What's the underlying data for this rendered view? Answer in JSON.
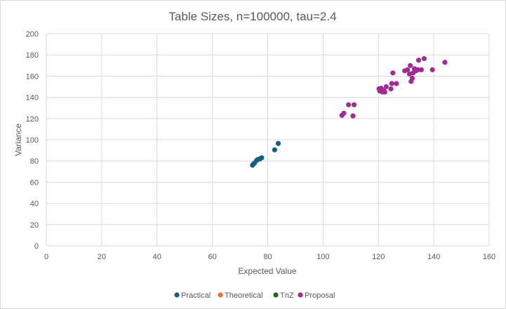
{
  "chart_data": {
    "type": "scatter",
    "title": "Table Sizes, n=100000, tau=2.4",
    "xlabel": "Expected Value",
    "ylabel": "Variance",
    "xlim": [
      0,
      160
    ],
    "ylim": [
      0,
      200
    ],
    "xticks": [
      0,
      20,
      40,
      60,
      80,
      100,
      120,
      140,
      160
    ],
    "yticks": [
      0,
      20,
      40,
      60,
      80,
      100,
      120,
      140,
      160,
      180,
      200
    ],
    "grid": true,
    "legend_position": "bottom",
    "series": [
      {
        "name": "Practical",
        "color": "#156082",
        "points": [
          [
            74.5,
            76
          ],
          [
            74.8,
            77
          ],
          [
            75.2,
            78
          ],
          [
            76,
            80.5
          ],
          [
            76.5,
            81.5
          ],
          [
            77.2,
            82
          ],
          [
            77.8,
            83
          ],
          [
            82.5,
            90.5
          ],
          [
            83.8,
            96.5
          ]
        ]
      },
      {
        "name": "Theoretical",
        "color": "#E97132",
        "points": []
      },
      {
        "name": "TnZ",
        "color": "#196B24",
        "points": []
      },
      {
        "name": "Proposal",
        "color": "#A02B93",
        "points": [
          [
            106.8,
            123
          ],
          [
            107.5,
            125
          ],
          [
            109.2,
            133
          ],
          [
            110.8,
            122.5
          ],
          [
            111.2,
            133
          ],
          [
            120.2,
            148
          ],
          [
            120.5,
            146
          ],
          [
            121,
            148.5
          ],
          [
            121.5,
            145
          ],
          [
            122,
            146
          ],
          [
            122.3,
            145
          ],
          [
            122.8,
            150
          ],
          [
            124.5,
            148
          ],
          [
            124.8,
            153
          ],
          [
            125.2,
            163
          ],
          [
            126.5,
            153
          ],
          [
            129.5,
            165
          ],
          [
            130.5,
            166
          ],
          [
            131.2,
            162
          ],
          [
            131.5,
            170
          ],
          [
            131.8,
            155
          ],
          [
            132.2,
            158
          ],
          [
            132.5,
            163
          ],
          [
            133,
            167
          ],
          [
            133.5,
            165
          ],
          [
            134.2,
            166
          ],
          [
            134.5,
            175
          ],
          [
            135.5,
            166
          ],
          [
            136.5,
            176.5
          ],
          [
            139.5,
            166
          ],
          [
            144,
            173
          ]
        ]
      }
    ]
  }
}
